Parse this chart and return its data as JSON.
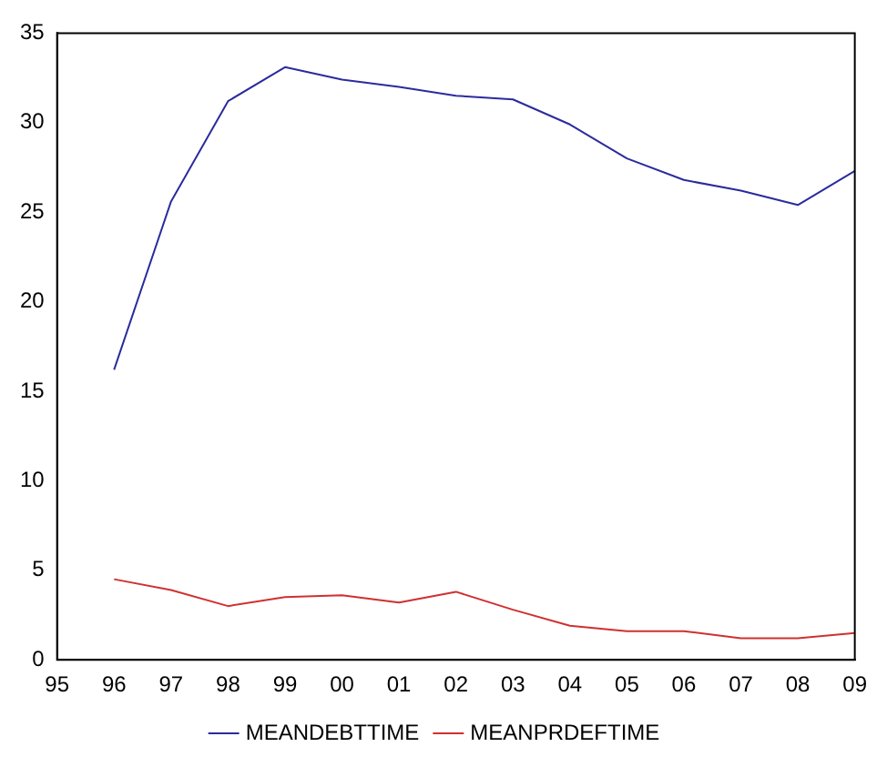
{
  "chart_data": {
    "type": "line",
    "categories": [
      "95",
      "96",
      "97",
      "98",
      "99",
      "00",
      "01",
      "02",
      "03",
      "04",
      "05",
      "06",
      "07",
      "08",
      "09"
    ],
    "series": [
      {
        "name": "MEANDEBTTIME",
        "color": "#2b2b9e",
        "values": [
          null,
          16.2,
          25.6,
          31.2,
          33.1,
          32.4,
          32.0,
          31.5,
          31.3,
          29.9,
          28.0,
          26.8,
          26.2,
          25.4,
          27.3
        ]
      },
      {
        "name": "MEANPRDEFTIME",
        "color": "#d03030",
        "values": [
          null,
          4.5,
          3.9,
          3.0,
          3.5,
          3.6,
          3.2,
          3.8,
          2.8,
          1.9,
          1.6,
          1.6,
          1.2,
          1.2,
          1.5
        ]
      }
    ],
    "ylim": [
      0,
      35
    ],
    "yticks": [
      0,
      5,
      10,
      15,
      20,
      25,
      30,
      35
    ],
    "grid": false,
    "legend": "bottom",
    "marker": "none",
    "line_style": "solid"
  }
}
